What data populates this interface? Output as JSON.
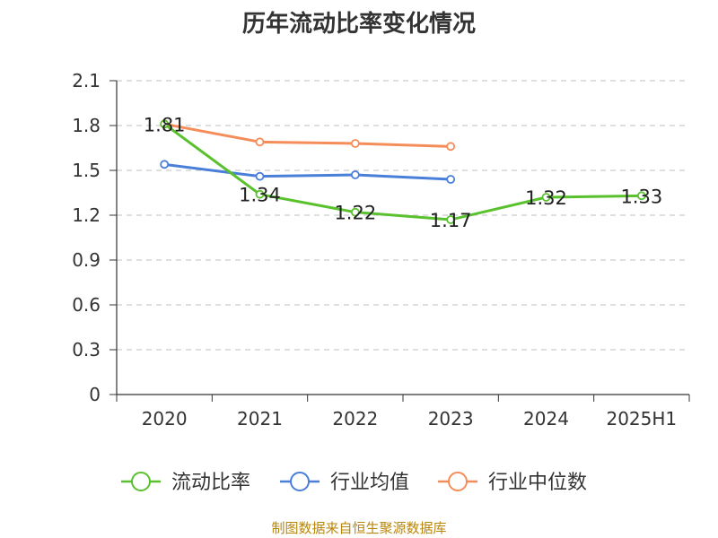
{
  "chart_data": {
    "type": "line",
    "title": "历年流动比率变化情况",
    "categories": [
      "2020",
      "2021",
      "2022",
      "2023",
      "2024",
      "2025H1"
    ],
    "y_ticks": [
      "0",
      "0.3",
      "0.6",
      "0.9",
      "1.2",
      "1.5",
      "1.8",
      "2.1"
    ],
    "ylim": [
      0,
      2.1
    ],
    "grid": true,
    "legend_position": "bottom",
    "series": [
      {
        "name": "流动比率",
        "color": "#5ac12e",
        "values": [
          1.81,
          1.34,
          1.22,
          1.17,
          1.32,
          1.33
        ],
        "labels": [
          "1.81",
          "1.34",
          "1.22",
          "1.17",
          "1.32",
          "1.33"
        ]
      },
      {
        "name": "行业均值",
        "color": "#4a7fd9",
        "values": [
          1.54,
          1.46,
          1.47,
          1.44,
          null,
          null
        ]
      },
      {
        "name": "行业中位数",
        "color": "#f58d5a",
        "values": [
          1.81,
          1.69,
          1.68,
          1.66,
          null,
          null
        ]
      }
    ]
  },
  "source_note": "制图数据来自恒生聚源数据库"
}
